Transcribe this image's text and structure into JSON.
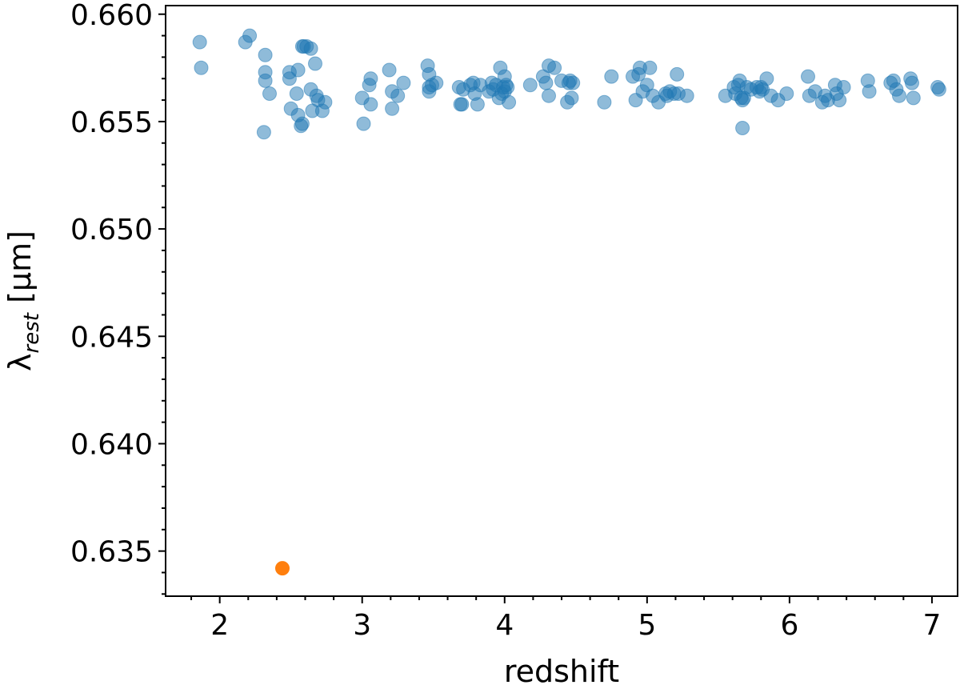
{
  "chart_data": {
    "type": "scatter",
    "title": "",
    "xlabel": "redshift",
    "ylabel": {
      "symbol": "λ",
      "subscript": "rest",
      "unit": " [μm]"
    },
    "xlim": [
      1.62,
      7.18
    ],
    "ylim": [
      0.6329,
      0.6604
    ],
    "x_ticks": [
      2,
      3,
      4,
      5,
      6,
      7
    ],
    "x_tick_labels": [
      "2",
      "3",
      "4",
      "5",
      "6",
      "7"
    ],
    "y_ticks": [
      0.635,
      0.64,
      0.645,
      0.65,
      0.655,
      0.66
    ],
    "y_tick_labels": [
      "0.635",
      "0.640",
      "0.645",
      "0.650",
      "0.655",
      "0.660"
    ],
    "grid": false,
    "series": [
      {
        "color": "#1f77b4",
        "alpha": 0.5,
        "points": [
          [
            1.86,
            0.6587
          ],
          [
            1.87,
            0.6575
          ],
          [
            2.18,
            0.6587
          ],
          [
            2.21,
            0.659
          ],
          [
            2.32,
            0.6581
          ],
          [
            2.32,
            0.6573
          ],
          [
            2.32,
            0.6569
          ],
          [
            2.31,
            0.6545
          ],
          [
            2.35,
            0.6563
          ],
          [
            2.49,
            0.657
          ],
          [
            2.49,
            0.6573
          ],
          [
            2.5,
            0.6556
          ],
          [
            2.54,
            0.6563
          ],
          [
            2.55,
            0.6553
          ],
          [
            2.55,
            0.6574
          ],
          [
            2.57,
            0.6548
          ],
          [
            2.58,
            0.6549
          ],
          [
            2.58,
            0.6585
          ],
          [
            2.59,
            0.6585
          ],
          [
            2.61,
            0.6585
          ],
          [
            2.64,
            0.6584
          ],
          [
            2.64,
            0.6565
          ],
          [
            2.65,
            0.6555
          ],
          [
            2.67,
            0.6577
          ],
          [
            2.68,
            0.6562
          ],
          [
            2.69,
            0.656
          ],
          [
            2.72,
            0.6555
          ],
          [
            2.74,
            0.6559
          ],
          [
            3.0,
            0.6561
          ],
          [
            3.01,
            0.6549
          ],
          [
            3.05,
            0.6567
          ],
          [
            3.06,
            0.657
          ],
          [
            3.06,
            0.6558
          ],
          [
            3.19,
            0.6574
          ],
          [
            3.21,
            0.6556
          ],
          [
            3.21,
            0.6564
          ],
          [
            3.25,
            0.6562
          ],
          [
            3.29,
            0.6568
          ],
          [
            3.46,
            0.6576
          ],
          [
            3.47,
            0.6572
          ],
          [
            3.47,
            0.6566
          ],
          [
            3.47,
            0.6564
          ],
          [
            3.49,
            0.6567
          ],
          [
            3.52,
            0.6568
          ],
          [
            3.68,
            0.6566
          ],
          [
            3.69,
            0.6558
          ],
          [
            3.7,
            0.6558
          ],
          [
            3.71,
            0.6565
          ],
          [
            3.76,
            0.6567
          ],
          [
            3.78,
            0.6568
          ],
          [
            3.79,
            0.6563
          ],
          [
            3.81,
            0.6558
          ],
          [
            3.83,
            0.6567
          ],
          [
            3.89,
            0.6564
          ],
          [
            3.91,
            0.6568
          ],
          [
            3.92,
            0.6565
          ],
          [
            3.94,
            0.6567
          ],
          [
            3.96,
            0.6561
          ],
          [
            3.97,
            0.6575
          ],
          [
            3.98,
            0.6563
          ],
          [
            3.99,
            0.6566
          ],
          [
            4.0,
            0.6564
          ],
          [
            4.0,
            0.6571
          ],
          [
            4.01,
            0.6567
          ],
          [
            4.02,
            0.6566
          ],
          [
            4.03,
            0.6559
          ],
          [
            4.18,
            0.6567
          ],
          [
            4.27,
            0.6571
          ],
          [
            4.29,
            0.6568
          ],
          [
            4.31,
            0.6576
          ],
          [
            4.31,
            0.6562
          ],
          [
            4.35,
            0.6575
          ],
          [
            4.4,
            0.6569
          ],
          [
            4.44,
            0.6559
          ],
          [
            4.45,
            0.6568
          ],
          [
            4.46,
            0.6569
          ],
          [
            4.47,
            0.6561
          ],
          [
            4.48,
            0.6568
          ],
          [
            4.7,
            0.6559
          ],
          [
            4.75,
            0.6571
          ],
          [
            4.9,
            0.6571
          ],
          [
            4.92,
            0.656
          ],
          [
            4.94,
            0.6572
          ],
          [
            4.95,
            0.6575
          ],
          [
            4.97,
            0.6564
          ],
          [
            5.0,
            0.6567
          ],
          [
            5.02,
            0.6575
          ],
          [
            5.04,
            0.6562
          ],
          [
            5.08,
            0.6559
          ],
          [
            5.13,
            0.6563
          ],
          [
            5.14,
            0.6562
          ],
          [
            5.16,
            0.6564
          ],
          [
            5.19,
            0.6563
          ],
          [
            5.21,
            0.6572
          ],
          [
            5.22,
            0.6563
          ],
          [
            5.28,
            0.6562
          ],
          [
            5.55,
            0.6562
          ],
          [
            5.61,
            0.6566
          ],
          [
            5.62,
            0.6563
          ],
          [
            5.64,
            0.6567
          ],
          [
            5.65,
            0.6569
          ],
          [
            5.66,
            0.6561
          ],
          [
            5.67,
            0.656
          ],
          [
            5.67,
            0.6547
          ],
          [
            5.68,
            0.6561
          ],
          [
            5.7,
            0.6566
          ],
          [
            5.73,
            0.6565
          ],
          [
            5.77,
            0.6566
          ],
          [
            5.79,
            0.6564
          ],
          [
            5.8,
            0.6566
          ],
          [
            5.81,
            0.6565
          ],
          [
            5.84,
            0.657
          ],
          [
            5.87,
            0.6562
          ],
          [
            5.92,
            0.656
          ],
          [
            5.98,
            0.6563
          ],
          [
            6.13,
            0.6571
          ],
          [
            6.14,
            0.6562
          ],
          [
            6.18,
            0.6564
          ],
          [
            6.23,
            0.6559
          ],
          [
            6.25,
            0.6562
          ],
          [
            6.27,
            0.656
          ],
          [
            6.32,
            0.6567
          ],
          [
            6.33,
            0.6563
          ],
          [
            6.35,
            0.656
          ],
          [
            6.38,
            0.6566
          ],
          [
            6.55,
            0.6569
          ],
          [
            6.56,
            0.6564
          ],
          [
            6.71,
            0.6568
          ],
          [
            6.73,
            0.6569
          ],
          [
            6.75,
            0.6565
          ],
          [
            6.77,
            0.6562
          ],
          [
            6.85,
            0.657
          ],
          [
            6.86,
            0.6568
          ],
          [
            6.87,
            0.6561
          ],
          [
            7.04,
            0.6566
          ],
          [
            7.05,
            0.6565
          ]
        ]
      },
      {
        "color": "#ff7f0e",
        "alpha": 1.0,
        "points": [
          [
            2.44,
            0.6342
          ]
        ]
      }
    ]
  }
}
